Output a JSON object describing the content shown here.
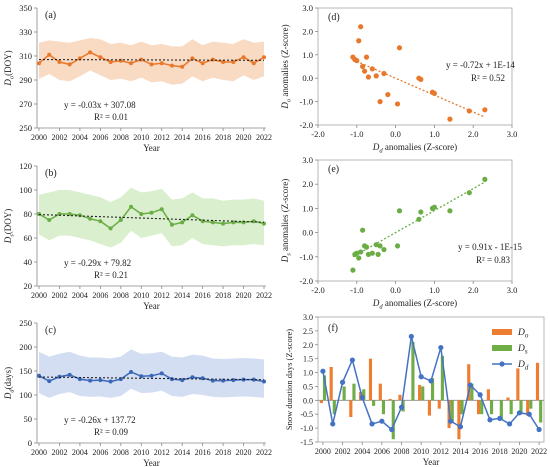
{
  "chart_data": [
    {
      "panel": "(a)",
      "type": "line",
      "title": "",
      "xlabel": "Year",
      "ylabel_main": "D",
      "ylabel_sub": "o",
      "ylabel_unit": "(DOY)",
      "x": [
        2000,
        2001,
        2002,
        2003,
        2004,
        2005,
        2006,
        2007,
        2008,
        2009,
        2010,
        2011,
        2012,
        2013,
        2014,
        2015,
        2016,
        2017,
        2018,
        2019,
        2020,
        2021,
        2022
      ],
      "xticks": [
        "2000",
        "2002",
        "2004",
        "2006",
        "2008",
        "2010",
        "2012",
        "2014",
        "2016",
        "2018",
        "2020",
        "2022"
      ],
      "ylim": [
        250,
        350
      ],
      "yticks": [
        "250",
        "270",
        "290",
        "310",
        "330",
        "350"
      ],
      "series": [
        {
          "values": [
            304,
            311,
            305,
            303,
            308,
            313,
            309,
            305,
            306,
            304,
            307,
            303,
            304,
            302,
            301,
            308,
            304,
            307,
            305,
            305,
            309,
            304,
            309
          ],
          "upper": [
            321,
            323,
            322,
            321,
            323,
            325,
            324,
            320,
            321,
            319,
            322,
            319,
            320,
            318,
            318,
            324,
            319,
            322,
            321,
            320,
            324,
            321,
            322
          ],
          "lower": [
            291,
            295,
            290,
            289,
            293,
            298,
            294,
            290,
            291,
            289,
            292,
            288,
            289,
            286,
            287,
            293,
            289,
            292,
            290,
            289,
            294,
            290,
            293
          ],
          "trend": [
            307.05,
            306.39
          ],
          "color": "#e8782b",
          "band_color": "#f8d3b8"
        }
      ],
      "annotation": [
        "y = -0.03x + 307.08",
        "R² = 0.01"
      ]
    },
    {
      "panel": "(b)",
      "type": "line",
      "title": "",
      "xlabel": "Year",
      "ylabel_main": "D",
      "ylabel_sub": "s",
      "ylabel_unit": "(DOY)",
      "x": [
        2000,
        2001,
        2002,
        2003,
        2004,
        2005,
        2006,
        2007,
        2008,
        2009,
        2010,
        2011,
        2012,
        2013,
        2014,
        2015,
        2016,
        2017,
        2018,
        2019,
        2020,
        2021,
        2022
      ],
      "xticks": [
        "2000",
        "2002",
        "2004",
        "2006",
        "2008",
        "2010",
        "2012",
        "2014",
        "2016",
        "2018",
        "2020",
        "2022"
      ],
      "ylim": [
        20,
        120
      ],
      "yticks": [
        "20",
        "40",
        "60",
        "80",
        "100",
        "120"
      ],
      "series": [
        {
          "values": [
            80,
            75,
            80,
            80,
            79,
            76,
            74,
            68,
            75,
            86,
            80,
            81,
            84,
            71,
            73,
            79,
            74,
            73,
            72,
            73,
            73,
            74,
            72
          ],
          "upper": [
            96,
            98,
            100,
            100,
            98,
            96,
            94,
            90,
            94,
            102,
            98,
            99,
            101,
            92,
            93,
            98,
            93,
            93,
            91,
            92,
            92,
            93,
            91
          ],
          "lower": [
            63,
            58,
            62,
            62,
            60,
            58,
            55,
            52,
            56,
            66,
            60,
            62,
            64,
            53,
            54,
            60,
            55,
            54,
            53,
            54,
            54,
            55,
            54
          ],
          "trend": [
            79.53,
            73.15
          ],
          "color": "#6aad45",
          "band_color": "#d4ecc4"
        }
      ],
      "annotation": [
        "y = -0.29x + 79.82",
        "R² = 0.21"
      ]
    },
    {
      "panel": "(c)",
      "type": "line",
      "title": "",
      "xlabel": "Year",
      "ylabel_main": "D",
      "ylabel_sub": "d",
      "ylabel_unit": "(days)",
      "x": [
        2000,
        2001,
        2002,
        2003,
        2004,
        2005,
        2006,
        2007,
        2008,
        2009,
        2010,
        2011,
        2012,
        2013,
        2014,
        2015,
        2016,
        2017,
        2018,
        2019,
        2020,
        2021,
        2022
      ],
      "xticks": [
        "2000",
        "2002",
        "2004",
        "2006",
        "2008",
        "2010",
        "2012",
        "2014",
        "2016",
        "2018",
        "2020",
        "2022"
      ],
      "ylim": [
        0,
        250
      ],
      "yticks": [
        "0",
        "50",
        "100",
        "150",
        "200",
        "250"
      ],
      "series": [
        {
          "values": [
            140,
            129,
            138,
            142,
            133,
            130,
            131,
            128,
            133,
            148,
            139,
            140,
            145,
            133,
            131,
            137,
            135,
            130,
            130,
            131,
            132,
            132,
            128
          ],
          "upper": [
            190,
            180,
            186,
            190,
            182,
            178,
            178,
            176,
            180,
            195,
            186,
            187,
            190,
            180,
            178,
            184,
            182,
            176,
            175,
            176,
            177,
            176,
            174
          ],
          "lower": [
            104,
            94,
            102,
            106,
            98,
            96,
            97,
            94,
            98,
            113,
            104,
            105,
            109,
            98,
            96,
            102,
            100,
            96,
            95,
            96,
            97,
            96,
            94
          ],
          "trend": [
            137.46,
            131.74
          ],
          "color": "#3a67b6",
          "band_color": "#ccd8f1"
        }
      ],
      "annotation": [
        "y = -0.26x + 137.72",
        "R² = 0.09"
      ]
    },
    {
      "panel": "(d)",
      "type": "scatter",
      "title": "",
      "xlabel_main": "D",
      "xlabel_sub": "d",
      "xlabel_rest": " anomalies (Z-score)",
      "ylabel_main": "D",
      "ylabel_sub": "o",
      "ylabel_rest": " anomalies (Z-score)",
      "xlim": [
        -2.0,
        3.0
      ],
      "ylim": [
        -2.0,
        3.0
      ],
      "xticks": [
        "-2.0",
        "-1.0",
        "0.0",
        "1.0",
        "2.0",
        "3.0"
      ],
      "yticks": [
        "-2.0",
        "-1.0",
        "0.0",
        "1.0",
        "2.0",
        "3.0"
      ],
      "points": [
        [
          -1.1,
          0.9
        ],
        [
          -1.05,
          0.8
        ],
        [
          -1.0,
          0.75
        ],
        [
          -0.95,
          1.6
        ],
        [
          -0.9,
          2.2
        ],
        [
          -0.85,
          0.5
        ],
        [
          -0.8,
          0.3
        ],
        [
          -0.75,
          0.9
        ],
        [
          -0.7,
          0.05
        ],
        [
          -0.6,
          0.4
        ],
        [
          -0.5,
          0.1
        ],
        [
          -0.4,
          -1.0
        ],
        [
          -0.3,
          0.2
        ],
        [
          -0.2,
          -0.7
        ],
        [
          0.05,
          -1.1
        ],
        [
          0.1,
          1.3
        ],
        [
          0.6,
          0.0
        ],
        [
          0.65,
          -0.05
        ],
        [
          0.95,
          -0.6
        ],
        [
          1.0,
          -0.65
        ],
        [
          1.4,
          -1.75
        ],
        [
          1.9,
          -1.4
        ],
        [
          2.3,
          -1.35
        ]
      ],
      "trend_x": [
        -1.1,
        2.3
      ],
      "trend_y": [
        0.79,
        -1.66
      ],
      "color": "#e8782b",
      "annotation": [
        "y = -0.72x + 1E-14",
        "R² = 0.52"
      ]
    },
    {
      "panel": "(e)",
      "type": "scatter",
      "title": "",
      "xlabel_main": "D",
      "xlabel_sub": "d",
      "xlabel_rest": " anomalies (Z-score)",
      "ylabel_main": "D",
      "ylabel_sub": "s",
      "ylabel_rest": " anomalies (Z-score)",
      "xlim": [
        -2.0,
        3.0
      ],
      "ylim": [
        -2.0,
        3.0
      ],
      "xticks": [
        "-2.0",
        "-1.0",
        "0.0",
        "1.0",
        "2.0",
        "3.0"
      ],
      "yticks": [
        "-2.0",
        "-1.0",
        "0.0",
        "1.0",
        "2.0",
        "3.0"
      ],
      "points": [
        [
          -1.1,
          -1.55
        ],
        [
          -1.05,
          -0.9
        ],
        [
          -1.0,
          -0.85
        ],
        [
          -0.95,
          -1.05
        ],
        [
          -0.9,
          -0.8
        ],
        [
          -0.85,
          0.1
        ],
        [
          -0.8,
          -0.55
        ],
        [
          -0.75,
          -0.6
        ],
        [
          -0.7,
          -0.9
        ],
        [
          -0.6,
          -0.85
        ],
        [
          -0.5,
          -0.5
        ],
        [
          -0.45,
          -0.9
        ],
        [
          -0.4,
          -0.55
        ],
        [
          -0.3,
          -0.7
        ],
        [
          0.05,
          -0.55
        ],
        [
          0.1,
          0.9
        ],
        [
          0.6,
          0.55
        ],
        [
          0.65,
          0.85
        ],
        [
          0.95,
          1.0
        ],
        [
          1.0,
          1.05
        ],
        [
          1.4,
          0.9
        ],
        [
          1.9,
          1.65
        ],
        [
          2.3,
          2.2
        ]
      ],
      "trend_x": [
        -1.1,
        2.3
      ],
      "trend_y": [
        -1.0,
        2.09
      ],
      "color": "#6aad45",
      "annotation": [
        "y = 0.91x - 1E-15",
        "R² = 0.83"
      ]
    },
    {
      "panel": "(f)",
      "type": "bar",
      "title": "",
      "xlabel": "Year",
      "ylabel": "Snow duration days (Z-score)",
      "x": [
        2000,
        2001,
        2002,
        2003,
        2004,
        2005,
        2006,
        2007,
        2008,
        2009,
        2010,
        2011,
        2012,
        2013,
        2014,
        2015,
        2016,
        2017,
        2018,
        2019,
        2020,
        2021,
        2022
      ],
      "xticks": [
        "2000",
        "2002",
        "2004",
        "2006",
        "2008",
        "2010",
        "2012",
        "2014",
        "2016",
        "2018",
        "2020",
        "2022"
      ],
      "ylim": [
        -1.5,
        3.0
      ],
      "yticks": [
        "-1.5",
        "-1.0",
        "-0.5",
        "0.0",
        "0.5",
        "1.0",
        "1.5",
        "2.0",
        "2.5",
        "3.0"
      ],
      "legend": [
        {
          "main": "D",
          "sub": "o",
          "color": "#ed7d31"
        },
        {
          "main": "D",
          "sub": "s",
          "color": "#70ad47"
        },
        {
          "main": "D",
          "sub": "d",
          "color": "#4472c4"
        }
      ],
      "series": [
        {
          "key": "Do",
          "color": "#ed7d31",
          "values": [
            -0.1,
            1.2,
            0.0,
            -0.6,
            0.3,
            1.5,
            0.6,
            0.05,
            0.2,
            0.0,
            0.55,
            -0.55,
            -0.3,
            -1.0,
            -1.4,
            1.3,
            -0.5,
            0.4,
            0.0,
            0.1,
            1.15,
            -0.55,
            1.35
          ]
        },
        {
          "key": "Ds",
          "color": "#70ad47",
          "values": [
            0.9,
            -0.5,
            0.5,
            0.6,
            0.4,
            -0.2,
            -0.5,
            -1.4,
            -0.4,
            2.1,
            0.5,
            0.8,
            1.6,
            -0.8,
            -0.5,
            0.6,
            -0.5,
            -0.5,
            -0.7,
            -0.5,
            -0.5,
            -0.3,
            -0.8
          ]
        },
        {
          "key": "Dd",
          "color": "#4472c4",
          "values": [
            1.05,
            -0.85,
            0.65,
            1.45,
            0.1,
            -0.85,
            -0.75,
            -1.05,
            -0.25,
            2.3,
            0.85,
            0.7,
            1.9,
            -0.75,
            -0.95,
            0.55,
            0.2,
            -0.7,
            -0.65,
            -0.85,
            -0.45,
            -0.5,
            -1.05
          ]
        }
      ]
    }
  ]
}
